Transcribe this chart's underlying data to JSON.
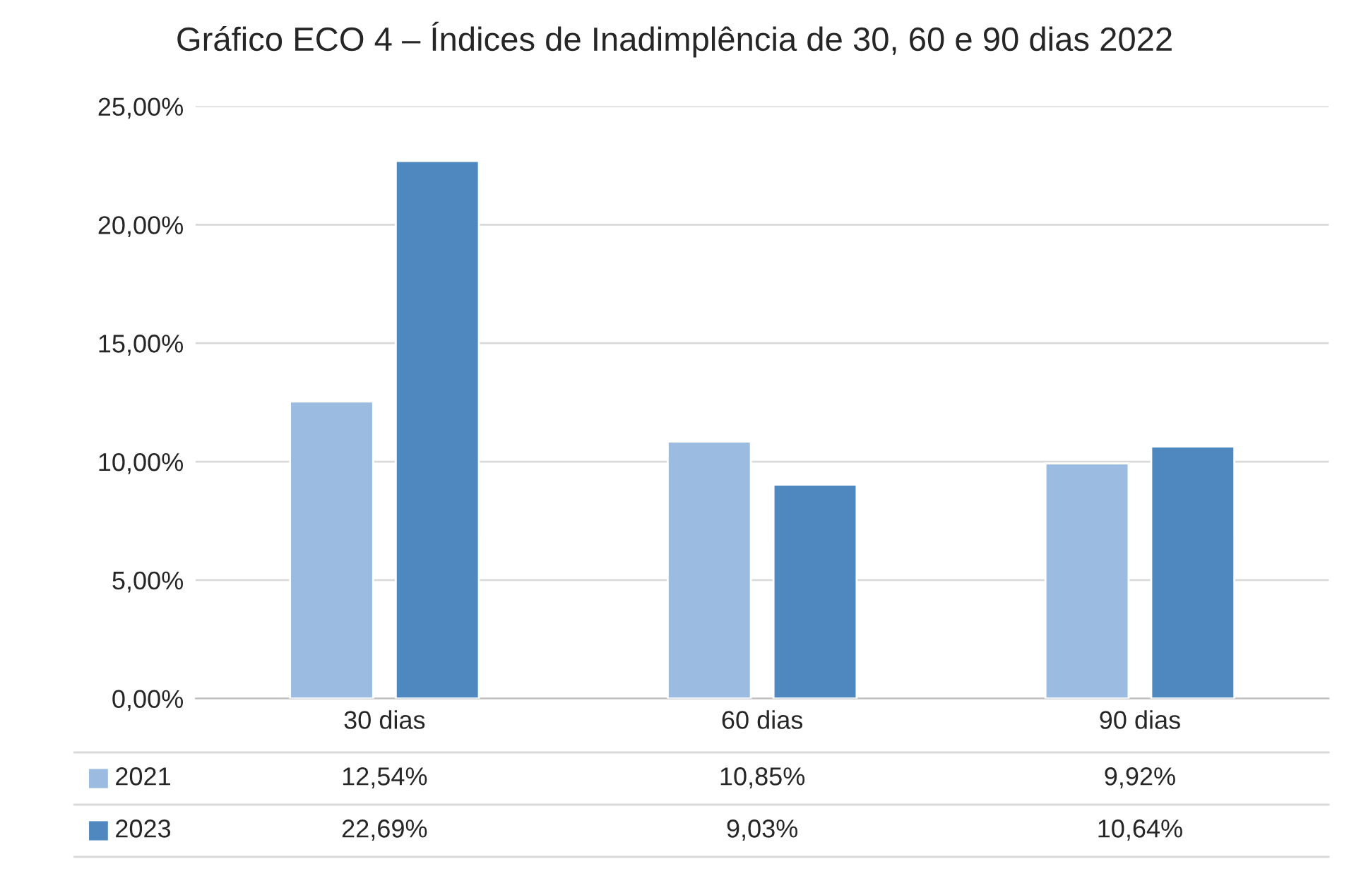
{
  "chart_data": {
    "type": "bar",
    "title": "Gráfico ECO 4 – Índices de Inadimplência de 30, 60 e 90 dias 2022",
    "categories": [
      "30 dias",
      "60 dias",
      "90 dias"
    ],
    "series": [
      {
        "name": "2021",
        "color": "#9bbbe0",
        "values": [
          12.54,
          10.85,
          9.92
        ],
        "value_labels": [
          "12,54%",
          "10,85%",
          "9,92%"
        ]
      },
      {
        "name": "2023",
        "color": "#4f88be",
        "values": [
          22.69,
          9.03,
          10.64
        ],
        "value_labels": [
          "22,69%",
          "9,03%",
          "10,64%"
        ]
      }
    ],
    "ylim": [
      0,
      25
    ],
    "yticks": [
      {
        "value": 0,
        "label": "0,00%"
      },
      {
        "value": 5,
        "label": "5,00%"
      },
      {
        "value": 10,
        "label": "10,00%"
      },
      {
        "value": 15,
        "label": "15,00%"
      },
      {
        "value": 20,
        "label": "20,00%"
      },
      {
        "value": 25,
        "label": "25,00%"
      }
    ],
    "grid": "y",
    "legend": "bottom"
  }
}
